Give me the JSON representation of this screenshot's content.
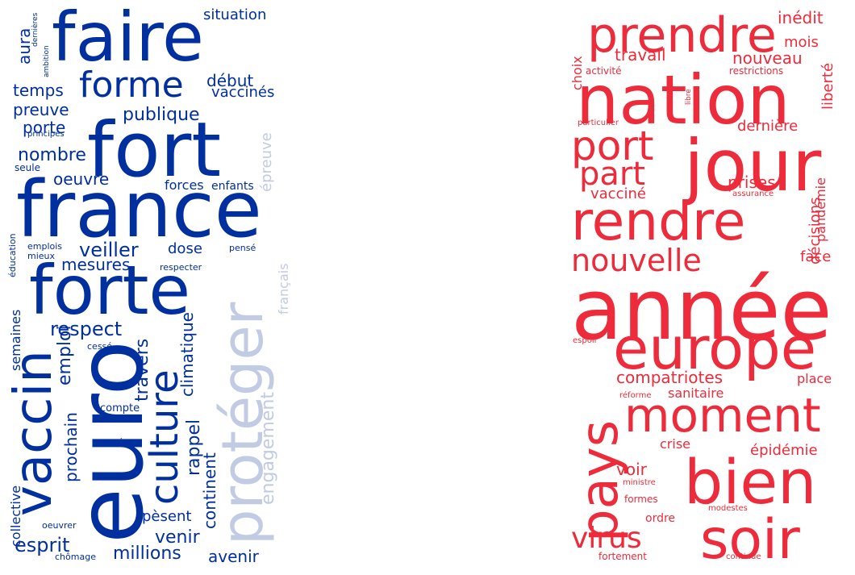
{
  "clouds": [
    {
      "id": "left",
      "palette": {
        "strong": "#002f9f",
        "pale": "#c2cbe4"
      },
      "words": [
        {
          "text": "faire"
        },
        {
          "text": "fort"
        },
        {
          "text": "france"
        },
        {
          "text": "forte"
        },
        {
          "text": "forme"
        },
        {
          "text": "euro"
        },
        {
          "text": "vaccin"
        },
        {
          "text": "protéger"
        },
        {
          "text": "culture"
        },
        {
          "text": "situation"
        },
        {
          "text": "début"
        },
        {
          "text": "vaccinés"
        },
        {
          "text": "publique"
        },
        {
          "text": "temps"
        },
        {
          "text": "preuve"
        },
        {
          "text": "porte"
        },
        {
          "text": "nombre"
        },
        {
          "text": "oeuvre"
        },
        {
          "text": "forces"
        },
        {
          "text": "enfants"
        },
        {
          "text": "veiller"
        },
        {
          "text": "dose"
        },
        {
          "text": "mesures"
        },
        {
          "text": "respect"
        },
        {
          "text": "emploi"
        },
        {
          "text": "travers"
        },
        {
          "text": "rappel"
        },
        {
          "text": "climatique"
        },
        {
          "text": "continent"
        },
        {
          "text": "prochain"
        },
        {
          "text": "esprit"
        },
        {
          "text": "venir"
        },
        {
          "text": "pèsent"
        },
        {
          "text": "millions"
        },
        {
          "text": "avenir"
        },
        {
          "text": "aura"
        },
        {
          "text": "semaines"
        },
        {
          "text": "collective"
        },
        {
          "text": "compte"
        },
        {
          "text": "premier"
        },
        {
          "text": "oeuvrer"
        },
        {
          "text": "chômage"
        },
        {
          "text": "cessé"
        },
        {
          "text": "respecter"
        },
        {
          "text": "pensé"
        },
        {
          "text": "emplois"
        },
        {
          "text": "mieux"
        },
        {
          "text": "éducation"
        },
        {
          "text": "seule"
        },
        {
          "text": "principes"
        },
        {
          "text": "dernières"
        },
        {
          "text": "ambition"
        },
        {
          "text": "épreuve"
        },
        {
          "text": "français"
        },
        {
          "text": "engagement"
        }
      ]
    },
    {
      "id": "right",
      "palette": {
        "strong": "#ee2b3b"
      },
      "words": [
        {
          "text": "prendre"
        },
        {
          "text": "nation"
        },
        {
          "text": "jour"
        },
        {
          "text": "port"
        },
        {
          "text": "part"
        },
        {
          "text": "rendre"
        },
        {
          "text": "nouvelle"
        },
        {
          "text": "année"
        },
        {
          "text": "europe"
        },
        {
          "text": "pays"
        },
        {
          "text": "moment"
        },
        {
          "text": "bien"
        },
        {
          "text": "soir"
        },
        {
          "text": "virus"
        },
        {
          "text": "inédit"
        },
        {
          "text": "mois"
        },
        {
          "text": "travail"
        },
        {
          "text": "nouveau"
        },
        {
          "text": "choix"
        },
        {
          "text": "activité"
        },
        {
          "text": "restrictions"
        },
        {
          "text": "liberté"
        },
        {
          "text": "libre"
        },
        {
          "text": "particulier"
        },
        {
          "text": "dernière"
        },
        {
          "text": "vacciné"
        },
        {
          "text": "prises"
        },
        {
          "text": "assurance"
        },
        {
          "text": "pandémie"
        },
        {
          "text": "décisions"
        },
        {
          "text": "face"
        },
        {
          "text": "compatriotes"
        },
        {
          "text": "sanitaire"
        },
        {
          "text": "place"
        },
        {
          "text": "réforme"
        },
        {
          "text": "espoir"
        },
        {
          "text": "crise"
        },
        {
          "text": "épidémie"
        },
        {
          "text": "voir"
        },
        {
          "text": "ministre"
        },
        {
          "text": "formes"
        },
        {
          "text": "ordre"
        },
        {
          "text": "modestes"
        },
        {
          "text": "fortement"
        },
        {
          "text": "continue"
        }
      ]
    }
  ]
}
